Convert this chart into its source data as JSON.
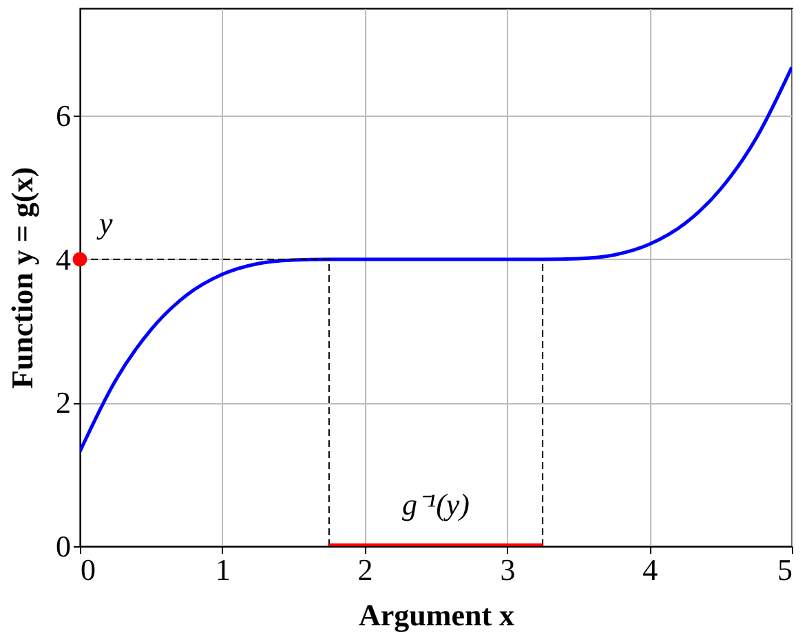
{
  "chart_data": {
    "type": "line",
    "xlabel": "Argument x",
    "ylabel": "Function y = g(x)",
    "xlim": [
      0,
      5
    ],
    "ylim": [
      0,
      7.5
    ],
    "xticks": [
      0,
      1,
      2,
      3,
      4,
      5
    ],
    "yticks": [
      0,
      2,
      4,
      6
    ],
    "grid": true,
    "series": [
      {
        "color": "#0000ff",
        "x": [
          0,
          0.25,
          0.5,
          0.75,
          1,
          1.25,
          1.5,
          1.75,
          3.25,
          3.5,
          3.75,
          4,
          4.25,
          4.5,
          4.75,
          5
        ],
        "values": [
          1.32,
          2.31,
          3.02,
          3.5,
          3.79,
          3.94,
          3.99,
          4,
          4,
          4.01,
          4.06,
          4.21,
          4.5,
          4.98,
          5.69,
          6.68
        ]
      },
      {
        "color": "#000000",
        "line_style": "dashed",
        "x": [
          0,
          1.75
        ],
        "values": [
          4,
          4
        ]
      },
      {
        "color": "#000000",
        "line_style": "dashed",
        "x": [
          1.75,
          1.75
        ],
        "values": [
          0,
          4
        ]
      },
      {
        "color": "#000000",
        "line_style": "dashed",
        "x": [
          3.25,
          3.25
        ],
        "values": [
          0,
          4
        ]
      },
      {
        "color": "#ff0000",
        "x": [
          1.75,
          3.25
        ],
        "values": [
          0,
          0
        ]
      },
      {
        "type": "scatter",
        "color": "#ff0000",
        "marker": "circle",
        "x": [
          0
        ],
        "values": [
          4
        ]
      }
    ],
    "annotations": [
      {
        "text": "y",
        "x": 0,
        "y": 4
      },
      {
        "text": "g⁻¹(y)",
        "x": 2.5,
        "y": 0
      }
    ]
  }
}
